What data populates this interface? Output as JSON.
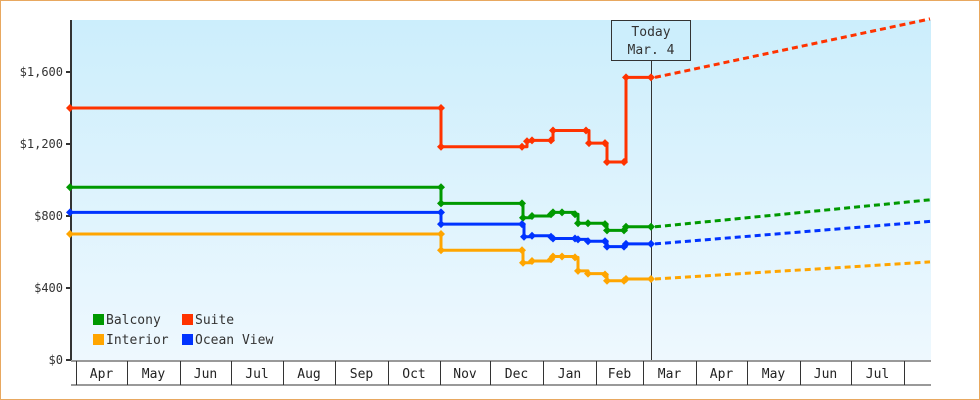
{
  "chart_data": {
    "type": "line",
    "title": "",
    "xlabel": "",
    "ylabel": "",
    "ylim": [
      0,
      1900
    ],
    "y_ticks": [
      "$0",
      "$400",
      "$800",
      "$1,200",
      "$1,600"
    ],
    "y_tick_values": [
      0,
      400,
      800,
      1200,
      1600
    ],
    "months": [
      "Apr",
      "May",
      "Jun",
      "Jul",
      "Aug",
      "Sep",
      "Oct",
      "Nov",
      "Dec",
      "Jan",
      "Feb",
      "Mar",
      "Apr",
      "May",
      "Jun",
      "Jul"
    ],
    "today_marker": {
      "line1": "Today",
      "line2": "Mar. 4"
    },
    "legend": [
      {
        "name": "Balcony",
        "color": "#009900"
      },
      {
        "name": "Suite",
        "color": "#ff3300"
      },
      {
        "name": "Interior",
        "color": "#ffa500"
      },
      {
        "name": "Ocean View",
        "color": "#0033ff"
      }
    ],
    "series": [
      {
        "name": "Suite",
        "color": "#ff3300",
        "history": [
          [
            70,
            1400
          ],
          [
            441,
            1400
          ],
          [
            441,
            1185
          ],
          [
            522,
            1185
          ],
          [
            527,
            1215
          ],
          [
            532,
            1220
          ],
          [
            551,
            1220
          ],
          [
            553,
            1275
          ],
          [
            572,
            1275
          ],
          [
            577,
            1275
          ],
          [
            586,
            1275
          ],
          [
            589,
            1205
          ],
          [
            605,
            1205
          ],
          [
            607,
            1100
          ],
          [
            624,
            1100
          ],
          [
            626,
            1570
          ],
          [
            651,
            1570
          ]
        ],
        "forecast": [
          [
            651,
            1570
          ],
          [
            930,
            1895
          ]
        ]
      },
      {
        "name": "Balcony",
        "color": "#009900",
        "history": [
          [
            70,
            960
          ],
          [
            441,
            960
          ],
          [
            441,
            870
          ],
          [
            522,
            870
          ],
          [
            523,
            790
          ],
          [
            532,
            800
          ],
          [
            551,
            810
          ],
          [
            553,
            820
          ],
          [
            562,
            820
          ],
          [
            575,
            810
          ],
          [
            578,
            760
          ],
          [
            588,
            760
          ],
          [
            605,
            755
          ],
          [
            607,
            720
          ],
          [
            624,
            720
          ],
          [
            626,
            740
          ],
          [
            651,
            740
          ]
        ],
        "forecast": [
          [
            651,
            740
          ],
          [
            930,
            890
          ]
        ]
      },
      {
        "name": "Ocean View",
        "color": "#0033ff",
        "history": [
          [
            70,
            820
          ],
          [
            441,
            820
          ],
          [
            441,
            755
          ],
          [
            522,
            755
          ],
          [
            524,
            685
          ],
          [
            532,
            690
          ],
          [
            551,
            685
          ],
          [
            553,
            675
          ],
          [
            575,
            675
          ],
          [
            578,
            670
          ],
          [
            588,
            660
          ],
          [
            605,
            660
          ],
          [
            607,
            630
          ],
          [
            624,
            630
          ],
          [
            626,
            645
          ],
          [
            651,
            645
          ]
        ],
        "forecast": [
          [
            651,
            645
          ],
          [
            930,
            770
          ]
        ]
      },
      {
        "name": "Interior",
        "color": "#ffa500",
        "history": [
          [
            70,
            700
          ],
          [
            441,
            700
          ],
          [
            441,
            610
          ],
          [
            522,
            610
          ],
          [
            523,
            540
          ],
          [
            532,
            550
          ],
          [
            551,
            560
          ],
          [
            553,
            575
          ],
          [
            562,
            575
          ],
          [
            575,
            570
          ],
          [
            578,
            495
          ],
          [
            588,
            480
          ],
          [
            605,
            475
          ],
          [
            607,
            440
          ],
          [
            624,
            440
          ],
          [
            626,
            450
          ],
          [
            651,
            450
          ]
        ],
        "forecast": [
          [
            651,
            450
          ],
          [
            930,
            545
          ]
        ]
      }
    ]
  }
}
